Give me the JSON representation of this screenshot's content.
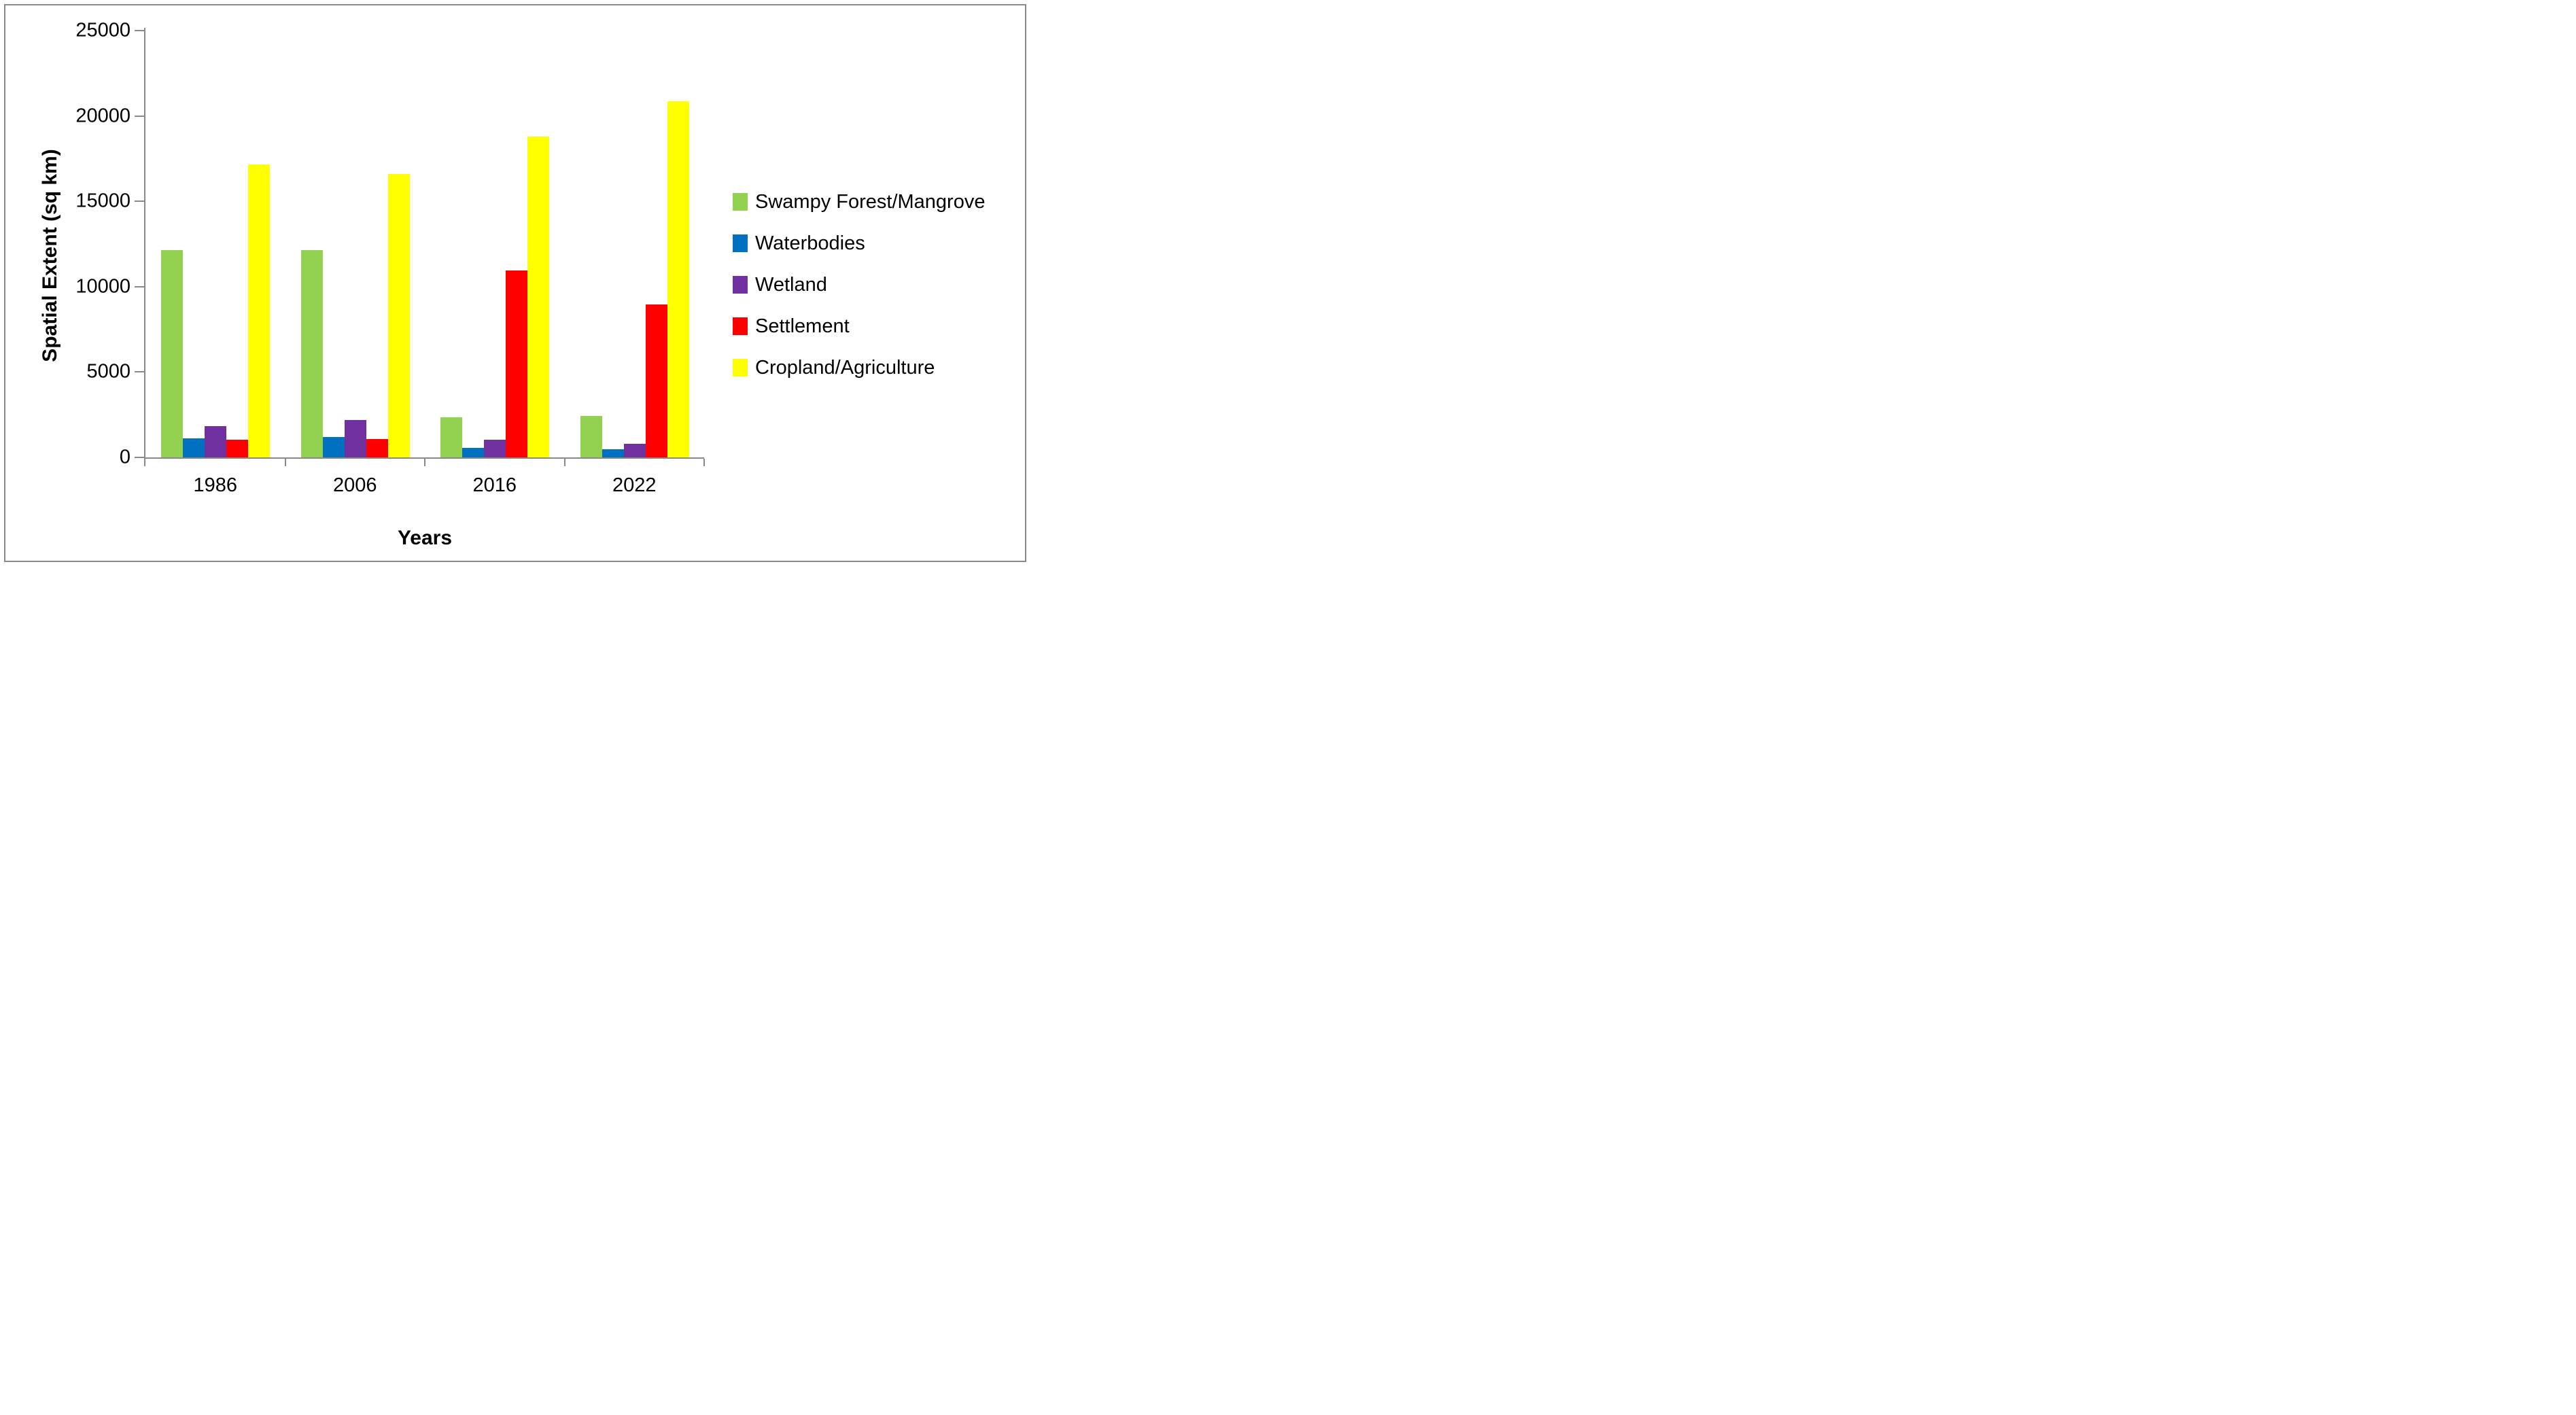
{
  "figure": {
    "background": "#FFFFFF",
    "border_color": "#898989",
    "axis_color": "#898989",
    "y_axis_title": "Spatial Extent (sq km)",
    "x_axis_title": "Years"
  },
  "chart_data": {
    "type": "bar",
    "title": "",
    "xlabel": "Years",
    "ylabel": "Spatial Extent (sq km)",
    "categories": [
      "1986",
      "2006",
      "2016",
      "2022"
    ],
    "series": [
      {
        "name": "Swampy Forest/Mangrove",
        "color": "#92D050",
        "values": [
          12150,
          12150,
          2340,
          2440
        ]
      },
      {
        "name": "Waterbodies",
        "color": "#0070C0",
        "values": [
          1100,
          1210,
          560,
          480
        ]
      },
      {
        "name": "Wetland",
        "color": "#7030A0",
        "values": [
          1830,
          2170,
          1050,
          815
        ]
      },
      {
        "name": "Settlement",
        "color": "#FF0000",
        "values": [
          1020,
          1080,
          10940,
          8960
        ]
      },
      {
        "name": "Cropland/Agriculture",
        "color": "#FFFF00",
        "values": [
          17160,
          16615,
          18780,
          20870
        ]
      }
    ],
    "ylim": [
      0,
      25000
    ],
    "yticks": [
      0,
      5000,
      10000,
      15000,
      20000,
      25000
    ],
    "grid": false,
    "legend_position": "right"
  }
}
